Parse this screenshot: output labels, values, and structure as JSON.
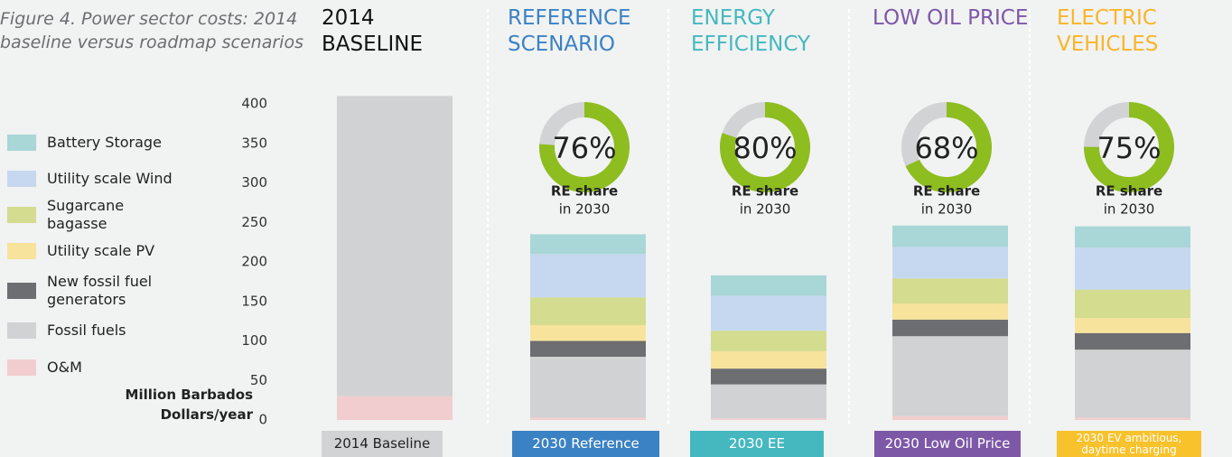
{
  "chart_data": {
    "type": "bar",
    "stacked": true,
    "title": "Figure 4. Power sector costs: 2014 baseline versus roadmap scenarios",
    "ylabel": "Million Barbados Dollars/year",
    "headers": [
      "2014 BASELINE",
      "REFERENCE SCENARIO",
      "ENERGY EFFICIENCY",
      "LOW OIL PRICE",
      "ELECTRIC VEHICLES"
    ],
    "header_colors": [
      "#111111",
      "#3b82c4",
      "#45b8bf",
      "#7d58a7",
      "#f8b62a"
    ],
    "categories": [
      "2014 Baseline",
      "2030 Reference",
      "2030 EE",
      "2030 Low Oil Price",
      "2030 EV ambitious, daytime charging"
    ],
    "category_colors": [
      "#d1d3d4",
      "#3b82c4",
      "#45b8bf",
      "#7d58a7",
      "#f8c22c"
    ],
    "series": [
      {
        "name": "O&M",
        "color": "#f2cdd0",
        "values": [
          30,
          3,
          2,
          5,
          3
        ]
      },
      {
        "name": "Fossil fuels",
        "color": "#d0d2d3",
        "values": [
          380,
          77,
          43,
          101,
          86
        ]
      },
      {
        "name": "New fossil fuel generators",
        "color": "#6d6e71",
        "values": [
          0,
          20,
          20,
          21,
          21
        ]
      },
      {
        "name": "Utility scale PV",
        "color": "#f8e39c",
        "values": [
          0,
          20,
          22,
          20,
          19
        ]
      },
      {
        "name": "Sugarcane bagasse",
        "color": "#d4dc90",
        "values": [
          0,
          35,
          26,
          32,
          36
        ]
      },
      {
        "name": "Utility scale Wind",
        "color": "#c6d8ef",
        "values": [
          0,
          55,
          44,
          40,
          53
        ]
      },
      {
        "name": "Battery Storage",
        "color": "#a9d6d6",
        "values": [
          0,
          25,
          26,
          27,
          27
        ]
      }
    ],
    "ylim": [
      0,
      420
    ],
    "yticks": [
      0,
      50,
      100,
      150,
      200,
      250,
      300,
      350,
      400
    ],
    "re_share": {
      "values": [
        null,
        76,
        80,
        68,
        75
      ],
      "value_labels": [
        null,
        "76%",
        "80%",
        "68%",
        "75%"
      ],
      "color": "#8dbd1f",
      "rest_color": "#d1d3d4",
      "label": "RE share",
      "year": "in 2030"
    }
  }
}
